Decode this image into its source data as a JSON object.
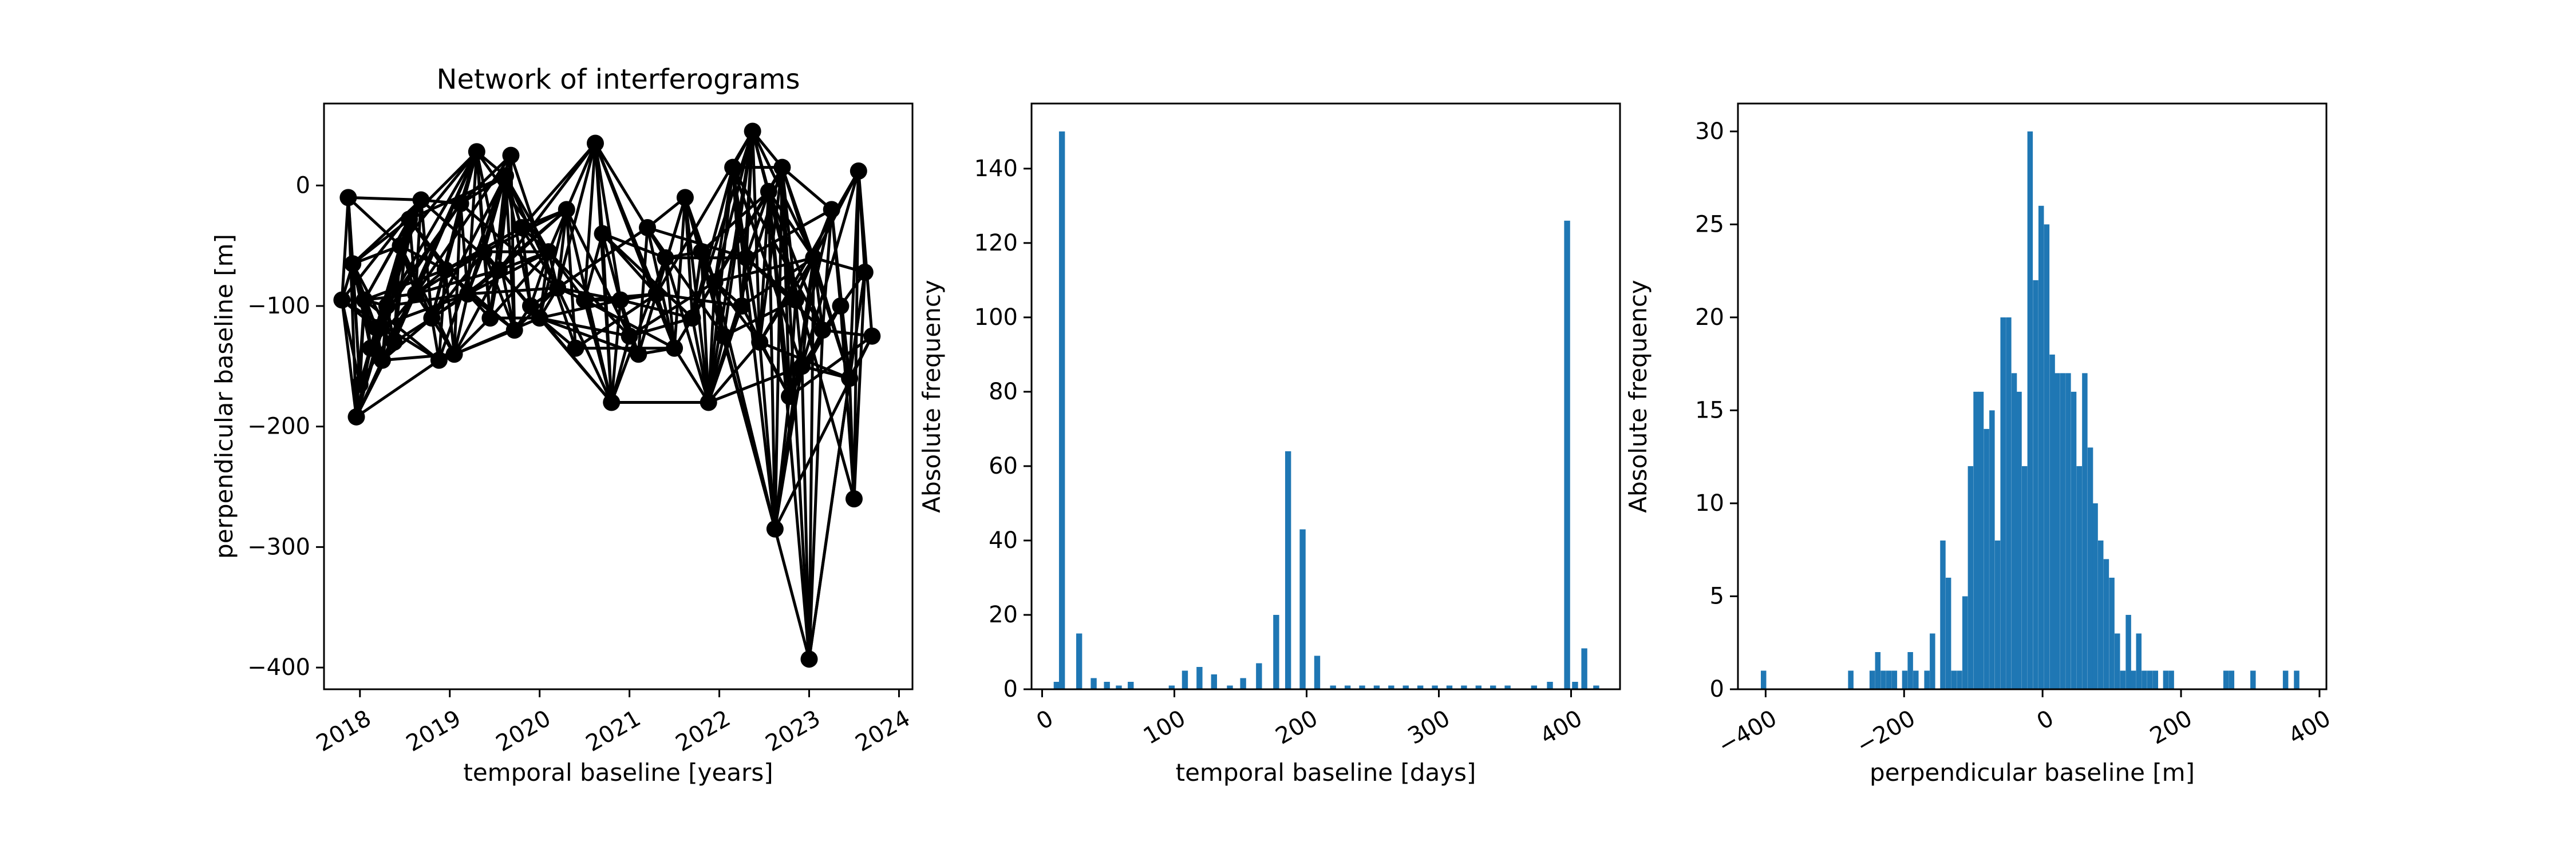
{
  "chart_data": [
    {
      "type": "line",
      "title": "Network of interferograms",
      "xlabel": "temporal baseline [years]",
      "ylabel": "perpendicular baseline [m]",
      "xlim": [
        2017.6,
        2024.15
      ],
      "ylim": [
        -418,
        68
      ],
      "xticks": [
        2018,
        2019,
        2020,
        2021,
        2022,
        2023,
        2024
      ],
      "xtick_labels": [
        "2018",
        "2019",
        "2020",
        "2021",
        "2022",
        "2023",
        "2024"
      ],
      "yticks": [
        0,
        -100,
        -200,
        -300,
        -400
      ],
      "ytick_labels": [
        "0",
        "−100",
        "−200",
        "−300",
        "−400"
      ],
      "grid": false,
      "colors": {
        "line": "#000000",
        "marker": "#000000"
      },
      "nodes": [
        [
          2017.8,
          -95
        ],
        [
          2017.87,
          -10
        ],
        [
          2017.92,
          -65
        ],
        [
          2017.96,
          -192
        ],
        [
          2018.0,
          -165
        ],
        [
          2018.05,
          -95
        ],
        [
          2018.12,
          -135
        ],
        [
          2018.18,
          -118
        ],
        [
          2018.25,
          -145
        ],
        [
          2018.3,
          -100
        ],
        [
          2018.38,
          -130
        ],
        [
          2018.45,
          -50
        ],
        [
          2018.55,
          -28
        ],
        [
          2018.62,
          -90
        ],
        [
          2018.68,
          -12
        ],
        [
          2018.8,
          -110
        ],
        [
          2018.88,
          -145
        ],
        [
          2018.95,
          -70
        ],
        [
          2019.05,
          -140
        ],
        [
          2019.12,
          -15
        ],
        [
          2019.2,
          -90
        ],
        [
          2019.3,
          28
        ],
        [
          2019.38,
          -55
        ],
        [
          2019.45,
          -110
        ],
        [
          2019.55,
          -70
        ],
        [
          2019.62,
          8
        ],
        [
          2019.68,
          25
        ],
        [
          2019.72,
          -120
        ],
        [
          2019.8,
          -35
        ],
        [
          2019.9,
          -100
        ],
        [
          2020.0,
          -110
        ],
        [
          2020.1,
          -55
        ],
        [
          2020.2,
          -85
        ],
        [
          2020.3,
          -20
        ],
        [
          2020.4,
          -135
        ],
        [
          2020.5,
          -95
        ],
        [
          2020.62,
          35
        ],
        [
          2020.7,
          -40
        ],
        [
          2020.8,
          -180
        ],
        [
          2020.9,
          -95
        ],
        [
          2021.0,
          -125
        ],
        [
          2021.1,
          -140
        ],
        [
          2021.2,
          -35
        ],
        [
          2021.3,
          -90
        ],
        [
          2021.4,
          -60
        ],
        [
          2021.5,
          -135
        ],
        [
          2021.62,
          -10
        ],
        [
          2021.7,
          -110
        ],
        [
          2021.8,
          -55
        ],
        [
          2021.88,
          -180
        ],
        [
          2021.95,
          -80
        ],
        [
          2022.05,
          -125
        ],
        [
          2022.15,
          15
        ],
        [
          2022.25,
          -100
        ],
        [
          2022.3,
          -60
        ],
        [
          2022.37,
          45
        ],
        [
          2022.45,
          -130
        ],
        [
          2022.55,
          -5
        ],
        [
          2022.62,
          -285
        ],
        [
          2022.7,
          15
        ],
        [
          2022.78,
          -175
        ],
        [
          2022.85,
          -95
        ],
        [
          2022.92,
          -150
        ],
        [
          2023.0,
          -393
        ],
        [
          2023.05,
          -60
        ],
        [
          2023.15,
          -120
        ],
        [
          2023.25,
          -20
        ],
        [
          2023.35,
          -100
        ],
        [
          2023.45,
          -160
        ],
        [
          2023.5,
          -260
        ],
        [
          2023.55,
          12
        ],
        [
          2023.62,
          -72
        ],
        [
          2023.7,
          -125
        ]
      ]
    },
    {
      "type": "bar",
      "title": "",
      "xlabel": "temporal baseline [days]",
      "ylabel": "Absolute frequency",
      "xlim": [
        -8,
        437
      ],
      "ylim": [
        0,
        157.5
      ],
      "bin_width": 4.5,
      "xticks": [
        0,
        100,
        200,
        300,
        400
      ],
      "xtick_labels": [
        "0",
        "100",
        "200",
        "300",
        "400"
      ],
      "yticks": [
        0,
        20,
        40,
        60,
        80,
        100,
        120,
        140
      ],
      "ytick_labels": [
        "0",
        "20",
        "40",
        "60",
        "80",
        "100",
        "120",
        "140"
      ],
      "grid": false,
      "colors": {
        "bar": "#1f77b4"
      },
      "bins": [
        [
          11,
          2
        ],
        [
          15,
          150
        ],
        [
          28,
          15
        ],
        [
          39,
          3
        ],
        [
          49,
          2
        ],
        [
          58,
          1
        ],
        [
          67,
          2
        ],
        [
          98,
          1
        ],
        [
          108,
          5
        ],
        [
          119,
          6
        ],
        [
          130,
          4
        ],
        [
          142,
          1
        ],
        [
          152,
          3
        ],
        [
          164,
          7
        ],
        [
          177,
          20
        ],
        [
          186,
          64
        ],
        [
          197,
          43
        ],
        [
          208,
          9
        ],
        [
          220,
          1
        ],
        [
          231,
          1
        ],
        [
          242,
          1
        ],
        [
          253,
          1
        ],
        [
          264,
          1
        ],
        [
          275,
          1
        ],
        [
          286,
          1
        ],
        [
          297,
          1
        ],
        [
          308,
          1
        ],
        [
          319,
          1
        ],
        [
          330,
          1
        ],
        [
          341,
          1
        ],
        [
          352,
          1
        ],
        [
          372,
          1
        ],
        [
          384,
          2
        ],
        [
          397,
          126
        ],
        [
          403,
          2
        ],
        [
          410,
          11
        ],
        [
          419,
          1
        ]
      ]
    },
    {
      "type": "bar",
      "title": "",
      "xlabel": "perpendicular baseline [m]",
      "ylabel": "Absolute frequency",
      "xlim": [
        -440,
        410
      ],
      "ylim": [
        0,
        31.5
      ],
      "bin_width": 7.85,
      "xticks": [
        -400,
        -200,
        0,
        200,
        400
      ],
      "xtick_labels": [
        "−400",
        "−200",
        "0",
        "200",
        "400"
      ],
      "yticks": [
        0,
        5,
        10,
        15,
        20,
        25,
        30
      ],
      "ytick_labels": [
        "0",
        "5",
        "10",
        "15",
        "20",
        "25",
        "30"
      ],
      "grid": false,
      "colors": {
        "bar": "#1f77b4"
      },
      "bins": [
        [
          -403,
          1
        ],
        [
          -277,
          1
        ],
        [
          -246,
          1
        ],
        [
          -238,
          2
        ],
        [
          -230,
          1
        ],
        [
          -222,
          1
        ],
        [
          -214,
          1
        ],
        [
          -199,
          1
        ],
        [
          -191,
          2
        ],
        [
          -183,
          1
        ],
        [
          -167,
          1
        ],
        [
          -159,
          3
        ],
        [
          -144,
          8
        ],
        [
          -136,
          6
        ],
        [
          -128,
          1
        ],
        [
          -120,
          1
        ],
        [
          -112,
          5
        ],
        [
          -104,
          12
        ],
        [
          -96,
          16
        ],
        [
          -89,
          16
        ],
        [
          -81,
          14
        ],
        [
          -73,
          15
        ],
        [
          -65,
          8
        ],
        [
          -57,
          20
        ],
        [
          -49,
          20
        ],
        [
          -41,
          17
        ],
        [
          -34,
          16
        ],
        [
          -26,
          12
        ],
        [
          -18,
          30
        ],
        [
          -10,
          22
        ],
        [
          -2,
          26
        ],
        [
          6,
          25
        ],
        [
          14,
          18
        ],
        [
          21,
          17
        ],
        [
          29,
          17
        ],
        [
          37,
          17
        ],
        [
          45,
          16
        ],
        [
          53,
          12
        ],
        [
          61,
          17
        ],
        [
          69,
          13
        ],
        [
          76,
          10
        ],
        [
          84,
          8
        ],
        [
          92,
          7
        ],
        [
          100,
          6
        ],
        [
          108,
          3
        ],
        [
          116,
          1
        ],
        [
          124,
          4
        ],
        [
          131,
          1
        ],
        [
          139,
          3
        ],
        [
          147,
          1
        ],
        [
          155,
          1
        ],
        [
          163,
          1
        ],
        [
          178,
          1
        ],
        [
          186,
          1
        ],
        [
          265,
          1
        ],
        [
          273,
          1
        ],
        [
          304,
          1
        ],
        [
          351,
          1
        ],
        [
          367,
          1
        ]
      ]
    }
  ]
}
